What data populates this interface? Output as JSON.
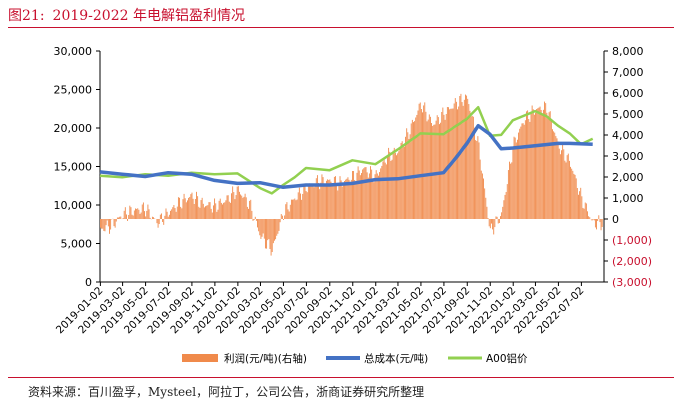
{
  "figure": {
    "label": "图21:",
    "title": "2019-2022 年电解铝盈利情况",
    "source": "资料来源：百川盈孚，Mysteel，阿拉丁，公司公告，浙商证券研究所整理"
  },
  "colors": {
    "accent": "#c8102e",
    "profit": "#f08a4b",
    "cost": "#4472c4",
    "price": "#92d050",
    "negative_tick": "#c8102e"
  },
  "chart_data": {
    "type": "bar+line",
    "xlabel": "",
    "ylabel_left": "",
    "ylabel_right": "",
    "left_axis": {
      "min": 0,
      "max": 30000,
      "ticks": [
        "0",
        "5,000",
        "10,000",
        "15,000",
        "20,000",
        "25,000",
        "30,000"
      ],
      "tick_values": [
        0,
        5000,
        10000,
        15000,
        20000,
        25000,
        30000
      ]
    },
    "right_axis": {
      "min": -3000,
      "max": 8000,
      "ticks": [
        "(3,000)",
        "(2,000)",
        "(1,000)",
        "0",
        "1,000",
        "2,000",
        "3,000",
        "4,000",
        "5,000",
        "6,000",
        "7,000",
        "8,000"
      ],
      "tick_values": [
        -3000,
        -2000,
        -1000,
        0,
        1000,
        2000,
        3000,
        4000,
        5000,
        6000,
        7000,
        8000
      ]
    },
    "x_ticks": [
      "2019-01-02",
      "2019-03-02",
      "2019-05-02",
      "2019-07-02",
      "2019-09-02",
      "2019-11-02",
      "2020-01-02",
      "2020-03-02",
      "2020-05-02",
      "2020-07-02",
      "2020-09-02",
      "2020-11-02",
      "2021-01-02",
      "2021-03-02",
      "2021-05-02",
      "2021-07-02",
      "2021-09-02",
      "2021-11-02",
      "2022-01-02",
      "2022-03-02",
      "2022-05-02",
      "2022-07-02"
    ],
    "x_range": [
      "2019-01-01",
      "2022-08-31"
    ],
    "legend_position": "bottom",
    "series": [
      {
        "name": "利润(元/吨)(右轴)",
        "kind": "bar",
        "axis": "right",
        "points": [
          [
            "2019-01-01",
            -500
          ],
          [
            "2019-02-01",
            -300
          ],
          [
            "2019-03-01",
            200
          ],
          [
            "2019-04-01",
            400
          ],
          [
            "2019-05-01",
            500
          ],
          [
            "2019-06-01",
            -200
          ],
          [
            "2019-07-01",
            300
          ],
          [
            "2019-08-01",
            800
          ],
          [
            "2019-09-01",
            1100
          ],
          [
            "2019-10-01",
            700
          ],
          [
            "2019-11-01",
            600
          ],
          [
            "2019-12-01",
            900
          ],
          [
            "2020-01-01",
            1400
          ],
          [
            "2020-02-01",
            700
          ],
          [
            "2020-03-01",
            -800
          ],
          [
            "2020-04-01",
            -1500
          ],
          [
            "2020-05-01",
            300
          ],
          [
            "2020-06-01",
            1000
          ],
          [
            "2020-07-01",
            1500
          ],
          [
            "2020-08-01",
            1800
          ],
          [
            "2020-09-01",
            1800
          ],
          [
            "2020-10-01",
            1700
          ],
          [
            "2020-11-01",
            2000
          ],
          [
            "2020-12-01",
            2400
          ],
          [
            "2021-01-01",
            2000
          ],
          [
            "2021-02-01",
            3000
          ],
          [
            "2021-03-01",
            3200
          ],
          [
            "2021-04-01",
            4200
          ],
          [
            "2021-05-01",
            5500
          ],
          [
            "2021-06-01",
            4500
          ],
          [
            "2021-07-01",
            5000
          ],
          [
            "2021-08-01",
            5500
          ],
          [
            "2021-09-01",
            5800
          ],
          [
            "2021-10-01",
            3500
          ],
          [
            "2021-11-01",
            -600
          ],
          [
            "2021-12-01",
            200
          ],
          [
            "2022-01-01",
            3500
          ],
          [
            "2022-02-01",
            4800
          ],
          [
            "2022-03-01",
            5200
          ],
          [
            "2022-04-01",
            5300
          ],
          [
            "2022-05-01",
            3500
          ],
          [
            "2022-06-01",
            2700
          ],
          [
            "2022-07-01",
            1000
          ],
          [
            "2022-08-01",
            -200
          ]
        ]
      },
      {
        "name": "总成本(元/吨)",
        "kind": "line",
        "axis": "left",
        "points": [
          [
            "2019-01-01",
            14300
          ],
          [
            "2019-03-01",
            14000
          ],
          [
            "2019-05-01",
            13700
          ],
          [
            "2019-07-01",
            14200
          ],
          [
            "2019-09-01",
            14000
          ],
          [
            "2019-11-01",
            13200
          ],
          [
            "2020-01-01",
            12800
          ],
          [
            "2020-03-01",
            12900
          ],
          [
            "2020-05-01",
            12300
          ],
          [
            "2020-07-01",
            12600
          ],
          [
            "2020-09-01",
            12600
          ],
          [
            "2020-11-01",
            12800
          ],
          [
            "2021-01-01",
            13300
          ],
          [
            "2021-03-01",
            13400
          ],
          [
            "2021-05-01",
            13800
          ],
          [
            "2021-07-01",
            14200
          ],
          [
            "2021-08-01",
            16000
          ],
          [
            "2021-09-01",
            18000
          ],
          [
            "2021-10-01",
            20300
          ],
          [
            "2021-11-01",
            19200
          ],
          [
            "2021-12-01",
            17300
          ],
          [
            "2022-01-01",
            17400
          ],
          [
            "2022-03-01",
            17700
          ],
          [
            "2022-05-01",
            18000
          ],
          [
            "2022-06-01",
            18000
          ],
          [
            "2022-08-01",
            17900
          ]
        ]
      },
      {
        "name": "A00铝价",
        "kind": "line",
        "axis": "left",
        "points": [
          [
            "2019-01-01",
            13800
          ],
          [
            "2019-03-01",
            13600
          ],
          [
            "2019-05-01",
            14000
          ],
          [
            "2019-07-01",
            13800
          ],
          [
            "2019-09-01",
            14200
          ],
          [
            "2019-11-01",
            14000
          ],
          [
            "2020-01-01",
            14100
          ],
          [
            "2020-03-01",
            12200
          ],
          [
            "2020-04-01",
            11500
          ],
          [
            "2020-05-01",
            12600
          ],
          [
            "2020-06-01",
            13600
          ],
          [
            "2020-07-01",
            14800
          ],
          [
            "2020-09-01",
            14500
          ],
          [
            "2020-11-01",
            15800
          ],
          [
            "2021-01-01",
            15300
          ],
          [
            "2021-03-01",
            17200
          ],
          [
            "2021-05-01",
            19300
          ],
          [
            "2021-07-01",
            19200
          ],
          [
            "2021-09-01",
            21200
          ],
          [
            "2021-10-01",
            22700
          ],
          [
            "2021-11-01",
            19000
          ],
          [
            "2021-12-01",
            19100
          ],
          [
            "2022-01-01",
            21000
          ],
          [
            "2022-03-01",
            22200
          ],
          [
            "2022-04-01",
            21500
          ],
          [
            "2022-05-01",
            20300
          ],
          [
            "2022-06-01",
            19300
          ],
          [
            "2022-07-01",
            17900
          ],
          [
            "2022-08-01",
            18600
          ]
        ]
      }
    ]
  }
}
